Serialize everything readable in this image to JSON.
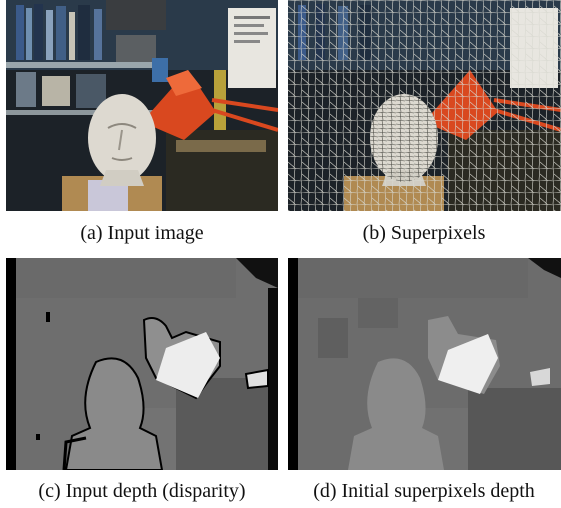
{
  "figure": {
    "panels": [
      {
        "id": "a",
        "caption": "(a) Input image",
        "kind": "photo"
      },
      {
        "id": "b",
        "caption": "(b) Superpixels",
        "kind": "photo-superpixel-overlay"
      },
      {
        "id": "c",
        "caption": "(c) Input depth (disparity)",
        "kind": "depth-map"
      },
      {
        "id": "d",
        "caption": "(d) Initial superpixels depth",
        "kind": "depth-map-superpixel"
      }
    ]
  }
}
